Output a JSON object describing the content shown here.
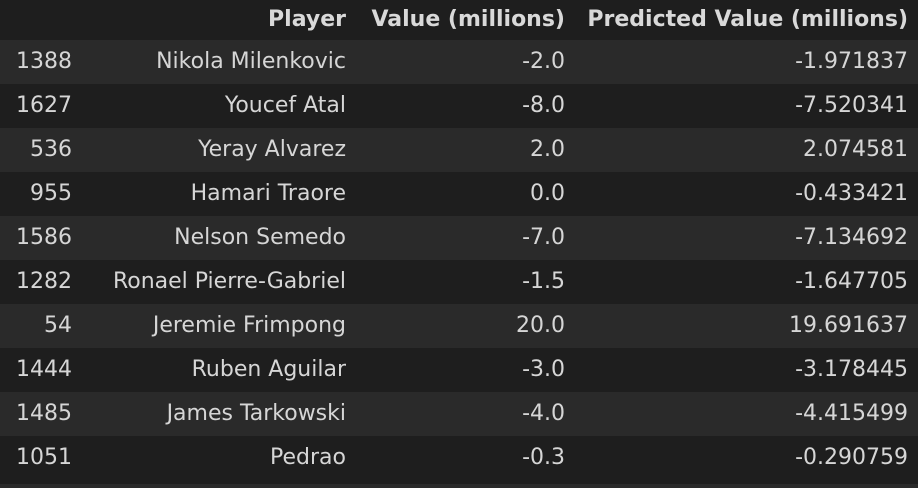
{
  "table": {
    "headers": {
      "index": "",
      "player": "Player",
      "value": "Value (millions)",
      "predicted": "Predicted Value (millions)"
    },
    "rows": [
      {
        "index": "1388",
        "player": "Nikola Milenkovic",
        "value": "-2.0",
        "predicted": "-1.971837"
      },
      {
        "index": "1627",
        "player": "Youcef Atal",
        "value": "-8.0",
        "predicted": "-7.520341"
      },
      {
        "index": "536",
        "player": "Yeray Alvarez",
        "value": "2.0",
        "predicted": "2.074581"
      },
      {
        "index": "955",
        "player": "Hamari Traore",
        "value": "0.0",
        "predicted": "-0.433421"
      },
      {
        "index": "1586",
        "player": "Nelson Semedo",
        "value": "-7.0",
        "predicted": "-7.134692"
      },
      {
        "index": "1282",
        "player": "Ronael Pierre-Gabriel",
        "value": "-1.5",
        "predicted": "-1.647705"
      },
      {
        "index": "54",
        "player": "Jeremie Frimpong",
        "value": "20.0",
        "predicted": "19.691637"
      },
      {
        "index": "1444",
        "player": "Ruben Aguilar",
        "value": "-3.0",
        "predicted": "-3.178445"
      },
      {
        "index": "1485",
        "player": "James Tarkowski",
        "value": "-4.0",
        "predicted": "-4.415499"
      },
      {
        "index": "1051",
        "player": "Pedrao",
        "value": "-0.3",
        "predicted": "-0.290759"
      }
    ]
  },
  "colors": {
    "background": "#1e1e1e",
    "row_stripe": "#2a2a2a",
    "text": "#d6d6d6"
  }
}
